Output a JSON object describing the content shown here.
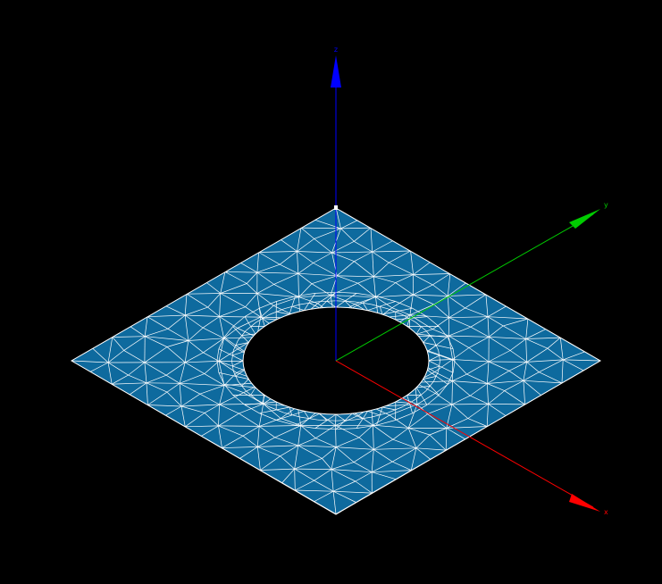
{
  "scene": {
    "background_color": "#000000",
    "mesh": {
      "fill_color": "#0E6A9E",
      "edge_color": "#FFFFFF",
      "shape": "square plate with circular hole",
      "element_type": "triangle"
    },
    "axes": [
      {
        "id": "x",
        "label": "x",
        "color": "#FF0000"
      },
      {
        "id": "y",
        "label": "y",
        "color": "#00CC00"
      },
      {
        "id": "z",
        "label": "z",
        "color": "#0000FF"
      }
    ]
  }
}
